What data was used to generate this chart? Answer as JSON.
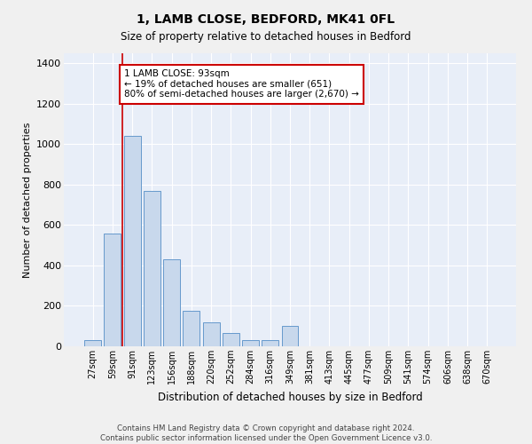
{
  "title": "1, LAMB CLOSE, BEDFORD, MK41 0FL",
  "subtitle": "Size of property relative to detached houses in Bedford",
  "xlabel": "Distribution of detached houses by size in Bedford",
  "ylabel": "Number of detached properties",
  "bar_color": "#c8d8ec",
  "bar_edge_color": "#6699cc",
  "background_color": "#e8eef8",
  "grid_color": "#ffffff",
  "annotation_line_color": "#cc0000",
  "annotation_box_color": "#cc0000",
  "annotation_text": [
    "1 LAMB CLOSE: 93sqm",
    "← 19% of detached houses are smaller (651)",
    "80% of semi-detached houses are larger (2,670) →"
  ],
  "property_bin_index": 2,
  "categories": [
    "27sqm",
    "59sqm",
    "91sqm",
    "123sqm",
    "156sqm",
    "188sqm",
    "220sqm",
    "252sqm",
    "284sqm",
    "316sqm",
    "349sqm",
    "381sqm",
    "413sqm",
    "445sqm",
    "477sqm",
    "509sqm",
    "541sqm",
    "574sqm",
    "606sqm",
    "638sqm",
    "670sqm"
  ],
  "values": [
    30,
    560,
    1040,
    770,
    430,
    175,
    120,
    65,
    30,
    30,
    100,
    0,
    0,
    0,
    0,
    0,
    0,
    0,
    0,
    0,
    0
  ],
  "ylim": [
    0,
    1450
  ],
  "yticks": [
    0,
    200,
    400,
    600,
    800,
    1000,
    1200,
    1400
  ],
  "footer1": "Contains HM Land Registry data © Crown copyright and database right 2024.",
  "footer2": "Contains public sector information licensed under the Open Government Licence v3.0."
}
